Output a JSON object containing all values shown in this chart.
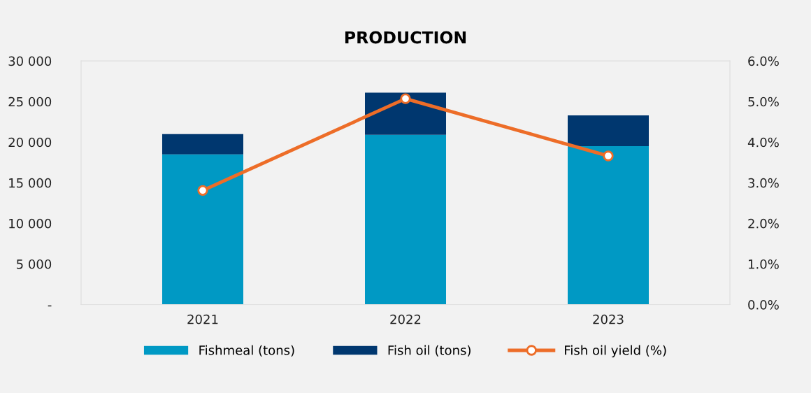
{
  "chart_data": {
    "type": "bar",
    "title": "PRODUCTION",
    "stacked": true,
    "categories": [
      "2021",
      "2022",
      "2023"
    ],
    "series": [
      {
        "name": "Fishmeal (tons)",
        "color": "#0099c4",
        "values": [
          18500,
          20900,
          19500
        ]
      },
      {
        "name": "Fish oil (tons)",
        "color": "#00376f",
        "values": [
          2500,
          5200,
          3800
        ]
      },
      {
        "name": "Fish oil yield (%)",
        "type": "line",
        "axis": "y2",
        "color": "#ed6d28",
        "marker": "circle",
        "values": [
          2.81,
          5.07,
          3.66
        ]
      }
    ],
    "ylim": [
      0,
      30000
    ],
    "yticks": [
      {
        "value": 0,
        "label": "-"
      },
      {
        "value": 5000,
        "label": "5 000"
      },
      {
        "value": 10000,
        "label": "10 000"
      },
      {
        "value": 15000,
        "label": "15 000"
      },
      {
        "value": 20000,
        "label": "20 000"
      },
      {
        "value": 25000,
        "label": "25 000"
      },
      {
        "value": 30000,
        "label": "30 000"
      }
    ],
    "y2lim": [
      0,
      6
    ],
    "y2ticks": [
      {
        "value": 0,
        "label": "0.0%"
      },
      {
        "value": 1,
        "label": "1.0%"
      },
      {
        "value": 2,
        "label": "2.0%"
      },
      {
        "value": 3,
        "label": "3.0%"
      },
      {
        "value": 4,
        "label": "4.0%"
      },
      {
        "value": 5,
        "label": "5.0%"
      },
      {
        "value": 6,
        "label": "6.0%"
      }
    ],
    "grid": false,
    "legend": "bottom"
  }
}
